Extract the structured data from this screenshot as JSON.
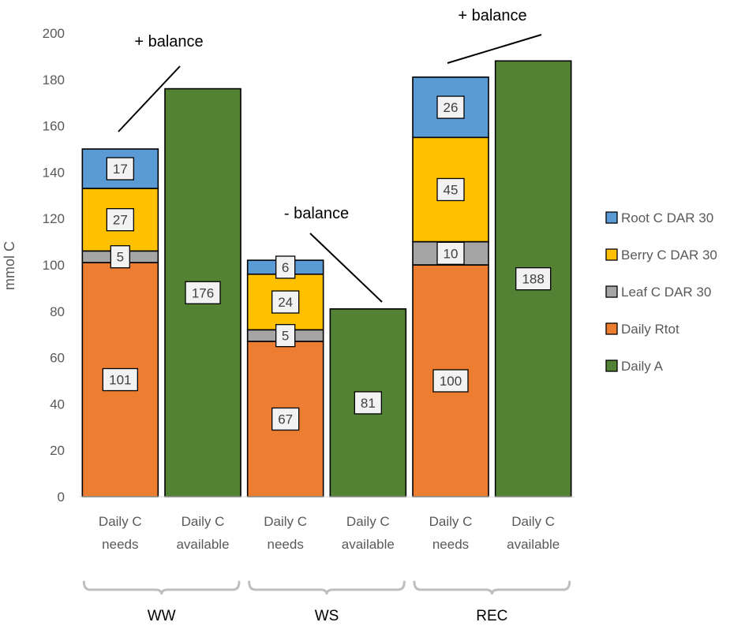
{
  "chart_data": {
    "type": "bar",
    "stacked": true,
    "title": "",
    "ylabel": "mmol C",
    "ylim": [
      0,
      200
    ],
    "yticks": [
      0,
      20,
      40,
      60,
      80,
      100,
      120,
      140,
      160,
      180,
      200
    ],
    "categories": [
      {
        "line1": "Daily C",
        "line2": "needs"
      },
      {
        "line1": "Daily C",
        "line2": "available"
      },
      {
        "line1": "Daily C",
        "line2": "needs"
      },
      {
        "line1": "Daily C",
        "line2": "available"
      },
      {
        "line1": "Daily C",
        "line2": "needs"
      },
      {
        "line1": "Daily C",
        "line2": "available"
      }
    ],
    "groups": [
      "WW",
      "WS",
      "REC"
    ],
    "series": [
      {
        "name": "Daily Rtot",
        "color": "#ED7D31",
        "values": [
          101,
          null,
          67,
          null,
          100,
          null
        ],
        "labels": [
          "101",
          "",
          "67",
          "",
          "100",
          ""
        ]
      },
      {
        "name": "Leaf C DAR 30",
        "color": "#A5A5A5",
        "values": [
          5,
          null,
          5,
          null,
          10,
          null
        ],
        "labels": [
          "5",
          "",
          "5",
          "",
          "10",
          ""
        ]
      },
      {
        "name": "Berry C DAR 30",
        "color": "#FFC000",
        "values": [
          27,
          null,
          24,
          null,
          45,
          null
        ],
        "labels": [
          "27",
          "",
          "24",
          "",
          "45",
          ""
        ]
      },
      {
        "name": "Root C DAR 30",
        "color": "#5B9BD5",
        "values": [
          17,
          null,
          6,
          null,
          26,
          null
        ],
        "labels": [
          "17",
          "",
          "6",
          "",
          "26",
          ""
        ]
      },
      {
        "name": "Daily A",
        "color": "#548235",
        "values": [
          null,
          176,
          null,
          81,
          null,
          188
        ],
        "labels": [
          "",
          "176",
          "",
          "81",
          "",
          "188"
        ]
      }
    ],
    "legend": {
      "position": "right",
      "entries": [
        "Root C DAR 30",
        "Berry C DAR 30",
        "Leaf C DAR 30",
        "Daily Rtot",
        "Daily A"
      ]
    },
    "annotations": [
      "+ balance",
      "- balance",
      "+ balance"
    ],
    "grid": false
  }
}
